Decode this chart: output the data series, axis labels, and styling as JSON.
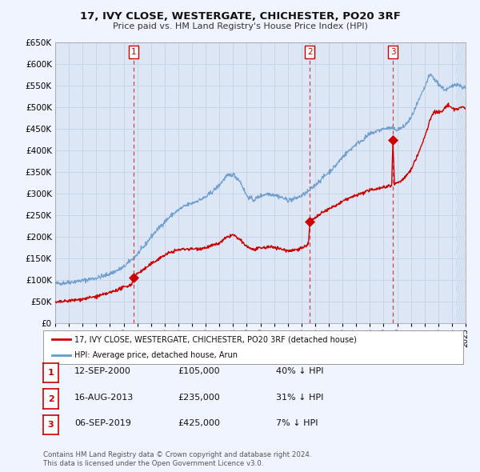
{
  "title": "17, IVY CLOSE, WESTERGATE, CHICHESTER, PO20 3RF",
  "subtitle": "Price paid vs. HM Land Registry's House Price Index (HPI)",
  "ylim": [
    0,
    650000
  ],
  "yticks": [
    0,
    50000,
    100000,
    150000,
    200000,
    250000,
    300000,
    350000,
    400000,
    450000,
    500000,
    550000,
    600000,
    650000
  ],
  "bg_color": "#f0f4ff",
  "plot_bg_color": "#dce6f5",
  "grid_color": "#c8d4e8",
  "sale_color": "#cc0000",
  "hpi_color": "#6699cc",
  "marker_color": "#cc0000",
  "sale_prices": [
    105000,
    235000,
    425000
  ],
  "sale_labels": [
    "1",
    "2",
    "3"
  ],
  "vline_x": [
    2000.71,
    2013.62,
    2019.68
  ],
  "legend_sale_label": "17, IVY CLOSE, WESTERGATE, CHICHESTER, PO20 3RF (detached house)",
  "legend_hpi_label": "HPI: Average price, detached house, Arun",
  "table_entries": [
    {
      "num": "1",
      "date": "12-SEP-2000",
      "price": "£105,000",
      "pct": "40% ↓ HPI"
    },
    {
      "num": "2",
      "date": "16-AUG-2013",
      "price": "£235,000",
      "pct": "31% ↓ HPI"
    },
    {
      "num": "3",
      "date": "06-SEP-2019",
      "price": "£425,000",
      "pct": "7% ↓ HPI"
    }
  ],
  "footnote1": "Contains HM Land Registry data © Crown copyright and database right 2024.",
  "footnote2": "This data is licensed under the Open Government Licence v3.0."
}
